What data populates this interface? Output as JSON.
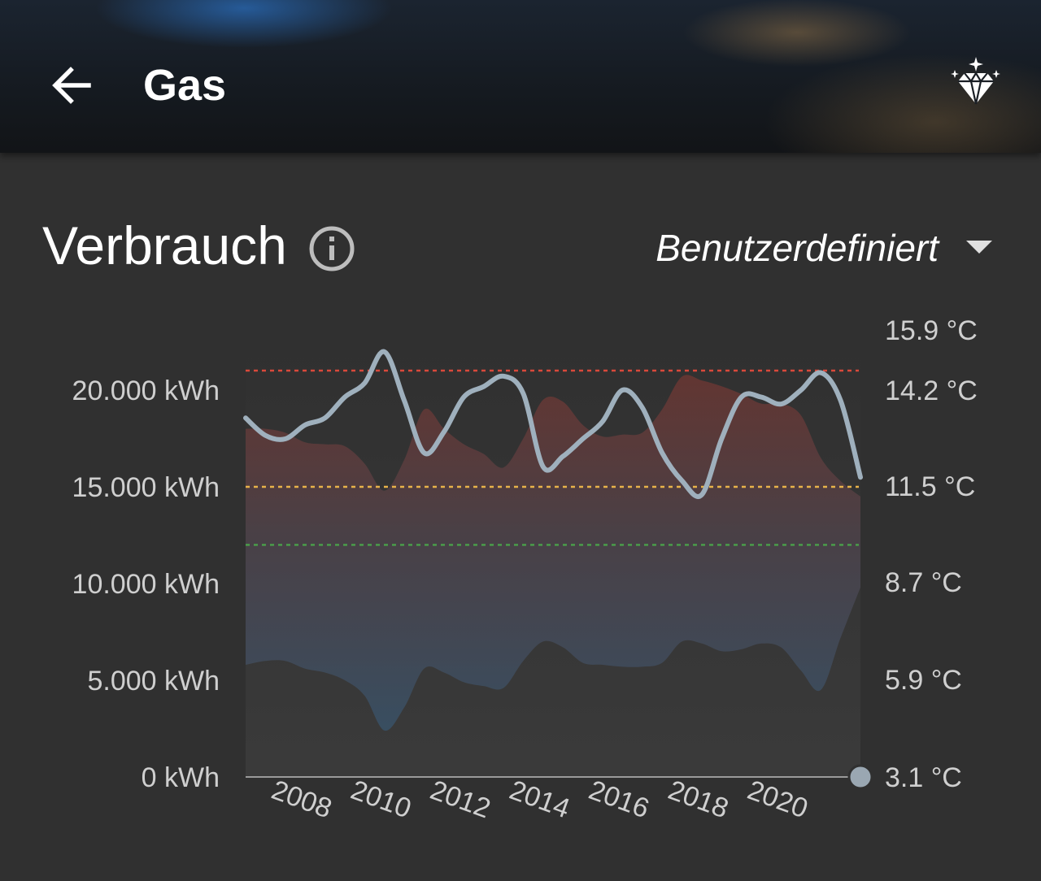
{
  "header": {
    "title": "Gas",
    "back_icon": "arrow-left-icon",
    "premium_icon": "diamond-sparkle-icon"
  },
  "consumption": {
    "title": "Verbrauch",
    "info_icon": "info-circle-icon",
    "period": "Benutzerdefiniert",
    "dropdown_icon": "caret-down-icon"
  },
  "colors": {
    "threshold_high": "#d9493b",
    "threshold_mid": "#e7b24a",
    "threshold_low": "#4aa04a",
    "temperature_line": "#9fb0bd",
    "background": "#303030"
  },
  "chart_data": {
    "type": "area",
    "x": [
      2006.5,
      2007,
      2007.5,
      2008,
      2008.5,
      2009,
      2009.5,
      2010,
      2010.5,
      2011,
      2011.5,
      2012,
      2012.5,
      2013,
      2013.5,
      2014,
      2014.5,
      2015,
      2015.5,
      2016,
      2016.5,
      2017,
      2017.5,
      2018,
      2018.5,
      2019,
      2019.5,
      2020,
      2020.5,
      2021,
      2021.5,
      2022
    ],
    "xticks": [
      "2008",
      "2010",
      "2012",
      "2014",
      "2016",
      "2018",
      "2020"
    ],
    "y_left_ticks": [
      "20.000 kWh",
      "15.000 kWh",
      "10.000 kWh",
      "5.000 kWh",
      "0 kWh"
    ],
    "y_right_ticks": [
      "15.9 °C",
      "14.2 °C",
      "11.5 °C",
      "8.7 °C",
      "5.9 °C",
      "3.1 °C"
    ],
    "ylim_left": [
      0,
      20000
    ],
    "ylim_right": [
      3.1,
      14.2
    ],
    "thresholds_kwh": [
      20000,
      15000,
      12000
    ],
    "series": [
      {
        "axis": "left",
        "values_upper": [
          18000,
          18000,
          17800,
          17300,
          17200,
          17100,
          16200,
          14800,
          16400,
          19000,
          18000,
          17200,
          16700,
          16000,
          17500,
          19500,
          19400,
          18200,
          17600,
          17700,
          17800,
          19000,
          20700,
          20500,
          20200,
          19800,
          19300,
          19300,
          18700,
          16500,
          15300,
          14500
        ],
        "values_lower": [
          5800,
          6000,
          6000,
          5600,
          5400,
          5000,
          4200,
          2400,
          3600,
          5600,
          5400,
          4900,
          4700,
          4600,
          6000,
          7000,
          6700,
          5900,
          5800,
          5700,
          5700,
          5900,
          7000,
          6900,
          6500,
          6600,
          6900,
          6700,
          5500,
          4500,
          7200,
          9800
        ]
      },
      {
        "axis": "right",
        "values": [
          13.4,
          12.9,
          12.8,
          13.2,
          13.4,
          14.0,
          14.4,
          15.3,
          13.9,
          12.4,
          13.0,
          14.0,
          14.3,
          14.6,
          14.1,
          12.0,
          12.3,
          12.8,
          13.3,
          14.2,
          13.7,
          12.4,
          11.6,
          11.2,
          12.8,
          14.0,
          14.0,
          13.8,
          14.2,
          14.7,
          13.9,
          11.7
        ]
      }
    ],
    "cursor": {
      "x": 2022,
      "y_left": 0
    }
  }
}
